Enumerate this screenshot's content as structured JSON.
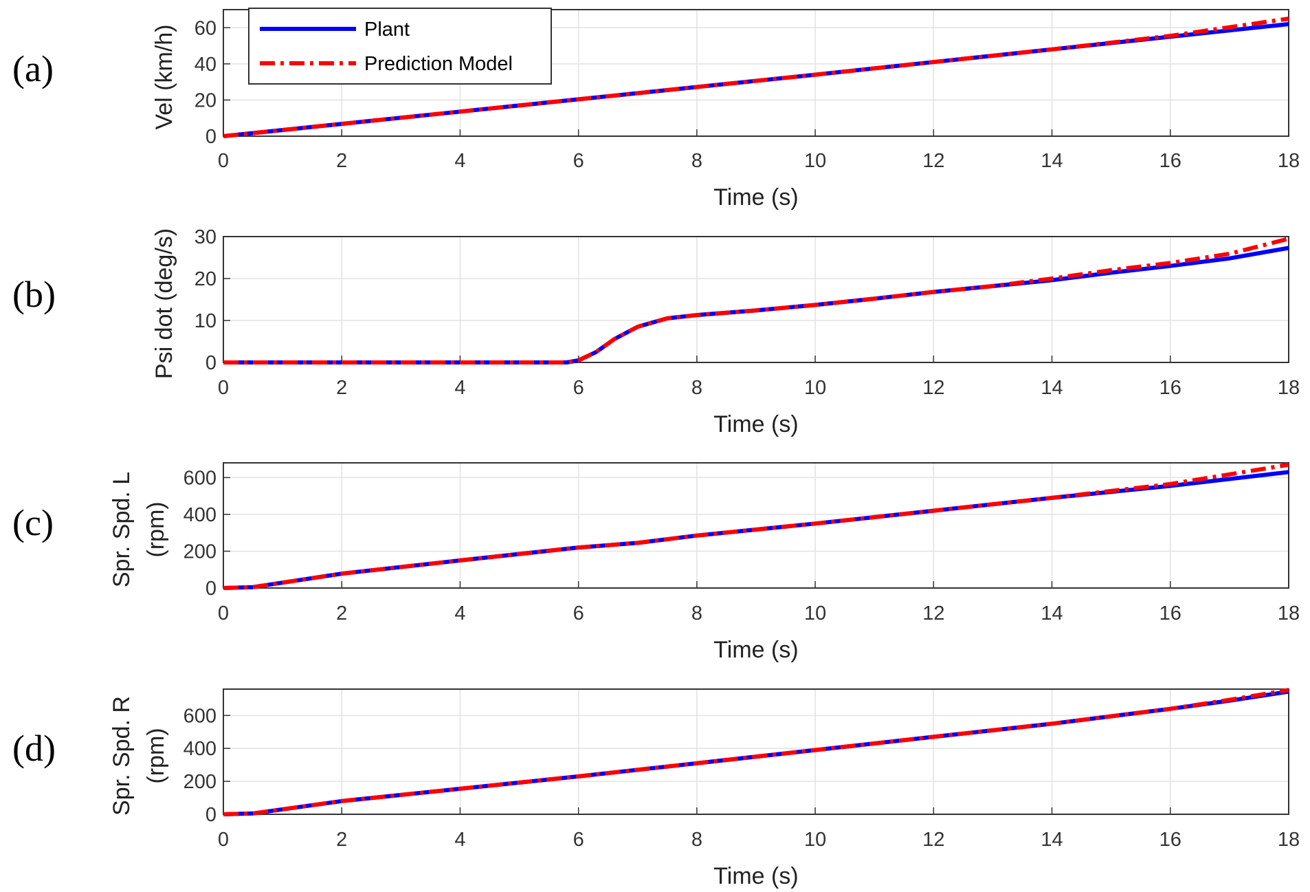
{
  "legend": {
    "items": [
      {
        "label": "Plant",
        "color": "#0000ff",
        "style": "solid"
      },
      {
        "label": "Prediction Model",
        "color": "#ff0000",
        "style": "dashdot"
      }
    ],
    "placement": "top-left of panel (a)"
  },
  "chart_data": [
    {
      "type": "line",
      "panel_letter": "(a)",
      "xlabel": "Time (s)",
      "ylabel": [
        "Vel (km/h)"
      ],
      "xlim": [
        0,
        18
      ],
      "ylim": [
        0,
        70
      ],
      "xticks": [
        0,
        2,
        4,
        6,
        8,
        10,
        12,
        14,
        16,
        18
      ],
      "yticks": [
        0,
        20,
        40,
        60
      ],
      "grid": true,
      "series": [
        {
          "name": "Plant",
          "color": "#0000ff",
          "x": [
            0,
            2,
            4,
            6,
            8,
            10,
            12,
            14,
            16,
            18
          ],
          "y": [
            0,
            6.8,
            13.6,
            20.4,
            27.2,
            34,
            41,
            48,
            55,
            62
          ]
        },
        {
          "name": "Prediction Model",
          "color": "#ff0000",
          "x": [
            0,
            2,
            4,
            6,
            8,
            10,
            12,
            14,
            16,
            18
          ],
          "y": [
            0,
            6.8,
            13.6,
            20.4,
            27.2,
            34,
            41,
            48,
            55.5,
            65
          ]
        }
      ]
    },
    {
      "type": "line",
      "panel_letter": "(b)",
      "xlabel": "Time (s)",
      "ylabel": [
        "Psi dot (deg/s)"
      ],
      "xlim": [
        0,
        18
      ],
      "ylim": [
        0,
        30
      ],
      "xticks": [
        0,
        2,
        4,
        6,
        8,
        10,
        12,
        14,
        16,
        18
      ],
      "yticks": [
        0,
        10,
        20,
        30
      ],
      "grid": true,
      "series": [
        {
          "name": "Plant",
          "color": "#0000ff",
          "x": [
            0,
            2,
            4,
            5.8,
            6,
            6.3,
            6.6,
            7,
            7.5,
            8,
            9,
            10,
            11,
            12,
            13,
            14,
            15,
            16,
            17,
            18
          ],
          "y": [
            0,
            0,
            0,
            0,
            0.5,
            2.5,
            5.5,
            8.5,
            10.5,
            11.3,
            12.4,
            13.7,
            15.2,
            16.8,
            18.2,
            19.6,
            21.4,
            23,
            24.8,
            27.3
          ]
        },
        {
          "name": "Prediction Model",
          "color": "#ff0000",
          "x": [
            0,
            2,
            4,
            5.8,
            6,
            6.3,
            6.6,
            7,
            7.5,
            8,
            9,
            10,
            11,
            12,
            13,
            14,
            15,
            16,
            17,
            18
          ],
          "y": [
            0,
            0,
            0,
            0,
            0.5,
            2.5,
            5.5,
            8.5,
            10.5,
            11.3,
            12.4,
            13.7,
            15.2,
            16.8,
            18.2,
            20,
            22,
            23.7,
            25.9,
            29.5
          ]
        }
      ]
    },
    {
      "type": "line",
      "panel_letter": "(c)",
      "xlabel": "Time (s)",
      "ylabel": [
        "Spr. Spd. L",
        "(rpm)"
      ],
      "xlim": [
        0,
        18
      ],
      "ylim": [
        0,
        680
      ],
      "xticks": [
        0,
        2,
        4,
        6,
        8,
        10,
        12,
        14,
        16,
        18
      ],
      "yticks": [
        0,
        200,
        400,
        600
      ],
      "grid": true,
      "series": [
        {
          "name": "Plant",
          "color": "#0000ff",
          "x": [
            0,
            0.5,
            2,
            4,
            6,
            7,
            8,
            10,
            12,
            14,
            16,
            18
          ],
          "y": [
            0,
            5,
            78,
            150,
            220,
            245,
            285,
            350,
            420,
            490,
            555,
            630
          ]
        },
        {
          "name": "Prediction Model",
          "color": "#ff0000",
          "x": [
            0,
            0.5,
            2,
            4,
            6,
            7,
            8,
            10,
            12,
            14,
            16,
            18
          ],
          "y": [
            0,
            5,
            78,
            150,
            220,
            245,
            285,
            350,
            420,
            490,
            565,
            670
          ]
        }
      ]
    },
    {
      "type": "line",
      "panel_letter": "(d)",
      "xlabel": "Time (s)",
      "ylabel": [
        "Spr. Spd. R",
        "(rpm)"
      ],
      "xlim": [
        0,
        18
      ],
      "ylim": [
        0,
        760
      ],
      "xticks": [
        0,
        2,
        4,
        6,
        8,
        10,
        12,
        14,
        16,
        18
      ],
      "yticks": [
        0,
        200,
        400,
        600
      ],
      "grid": true,
      "series": [
        {
          "name": "Plant",
          "color": "#0000ff",
          "x": [
            0,
            0.5,
            2,
            4,
            6,
            8,
            10,
            12,
            14,
            16,
            17,
            18
          ],
          "y": [
            0,
            5,
            80,
            155,
            230,
            310,
            390,
            470,
            550,
            640,
            690,
            745
          ]
        },
        {
          "name": "Prediction Model",
          "color": "#ff0000",
          "x": [
            0,
            0.5,
            2,
            4,
            6,
            8,
            10,
            12,
            14,
            16,
            17,
            18
          ],
          "y": [
            0,
            5,
            80,
            155,
            230,
            310,
            390,
            470,
            550,
            640,
            695,
            755
          ]
        }
      ]
    }
  ]
}
